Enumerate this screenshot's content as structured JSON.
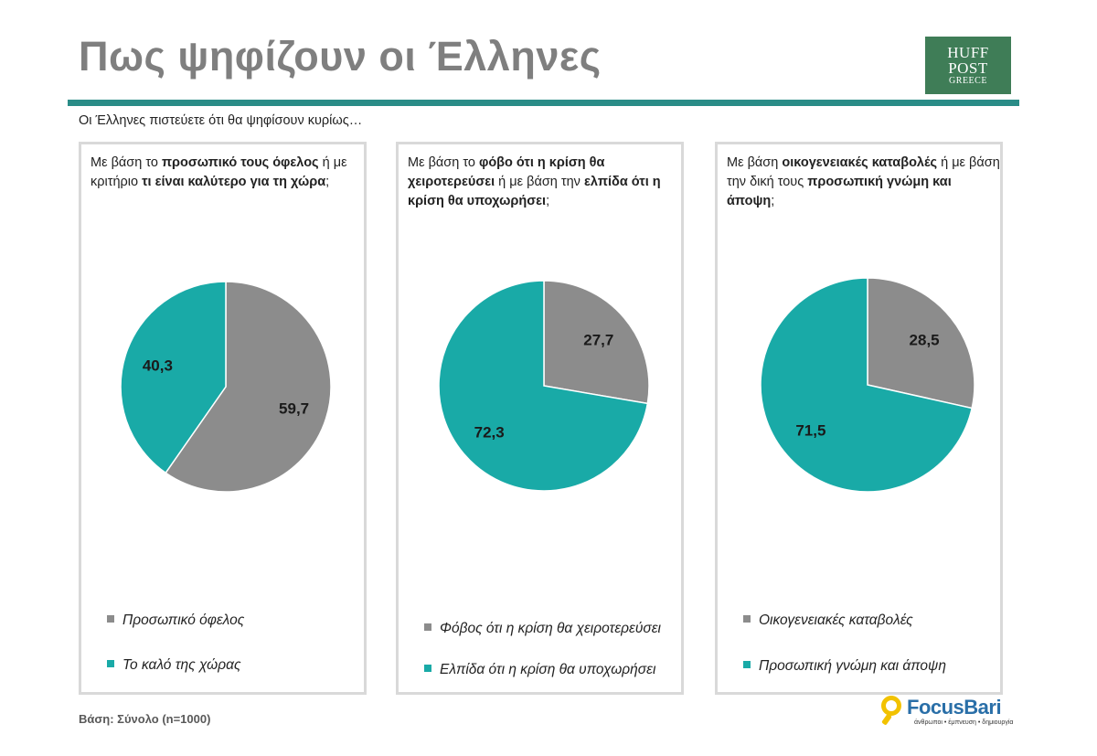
{
  "header": {
    "title": "Πως ψηφίζουν οι Έλληνες",
    "logo_line1": "HUFF",
    "logo_line2": "POST",
    "logo_line3": "GREECE"
  },
  "subtitle": "Οι Έλληνες πιστεύετε ότι θα ψηφίσουν κυρίως…",
  "footer": {
    "base": "Βάση: Σύνολο (n=1000)",
    "brand": "FocusBari",
    "tagline": "άνθρωποι • έμπνευση • δημιουργία"
  },
  "colors": {
    "gray": "#8c8c8c",
    "teal": "#19aaa7",
    "rule": "#2a8c87"
  },
  "panels": [
    {
      "q": {
        "p1": "Με βάση το ",
        "b1": "προσωπικό τους όφελος",
        "p2": " ή με κριτήριο ",
        "b2": "τι είναι καλύτερο για τη χώρα",
        "p3": ";"
      },
      "legend": [
        "Προσωπικό όφελος",
        "Το καλό της χώρας"
      ]
    },
    {
      "q": {
        "p1": "Με βάση το ",
        "b1": "φόβο ότι η κρίση θα χειροτερεύσει",
        "p2": " ή με βάση  την ",
        "b2": "ελπίδα ότι η κρίση θα υποχωρήσει",
        "p3": ";"
      },
      "legend": [
        "Φόβος ότι η κρίση θα χειροτερεύσει",
        "Ελπίδα ότι η κρίση θα υποχωρήσει"
      ]
    },
    {
      "q": {
        "p1": "Με βάση ",
        "b1": "οικογενειακές καταβολές",
        "p2": " ή με βάση την δική τους ",
        "b2": "προσωπική γνώμη και άποψη",
        "p3": ";"
      },
      "legend": [
        "Οικογενειακές καταβολές",
        "Προσωπική γνώμη και άποψη"
      ]
    }
  ],
  "chart_data": [
    {
      "type": "pie",
      "categories": [
        "Προσωπικό όφελος",
        "Το καλό της χώρας"
      ],
      "values": [
        59.7,
        40.3
      ],
      "labels": [
        "59,7",
        "40,3"
      ],
      "colors": [
        "#8c8c8c",
        "#19aaa7"
      ]
    },
    {
      "type": "pie",
      "categories": [
        "Φόβος ότι η κρίση θα χειροτερεύσει",
        "Ελπίδα ότι η κρίση θα υποχωρήσει"
      ],
      "values": [
        27.7,
        72.3
      ],
      "labels": [
        "27,7",
        "72,3"
      ],
      "colors": [
        "#8c8c8c",
        "#19aaa7"
      ]
    },
    {
      "type": "pie",
      "categories": [
        "Οικογενειακές καταβολές",
        "Προσωπική γνώμη και άποψη"
      ],
      "values": [
        28.5,
        71.5
      ],
      "labels": [
        "28,5",
        "71,5"
      ],
      "colors": [
        "#8c8c8c",
        "#19aaa7"
      ]
    }
  ]
}
